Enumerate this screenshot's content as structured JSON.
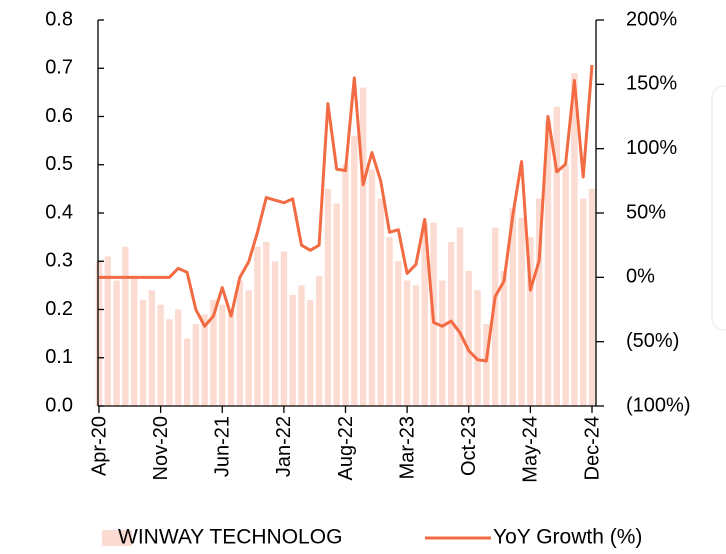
{
  "chart_data": {
    "type": "bar_line",
    "categories": [
      "Apr-20",
      null,
      null,
      null,
      null,
      null,
      null,
      "Nov-20",
      null,
      null,
      null,
      null,
      null,
      null,
      "Jun-21",
      null,
      null,
      null,
      null,
      null,
      null,
      "Jan-22",
      null,
      null,
      null,
      null,
      null,
      null,
      "Aug-22",
      null,
      null,
      null,
      null,
      null,
      null,
      "Mar-23",
      null,
      null,
      null,
      null,
      null,
      null,
      "Oct-23",
      null,
      null,
      null,
      null,
      null,
      null,
      "May-24",
      null,
      null,
      null,
      null,
      null,
      null,
      "Dec-24"
    ],
    "series": [
      {
        "name": "WINWAY TECHNOLOG",
        "type": "bar",
        "color": "#fcdcd2",
        "axis": "y",
        "values": [
          0.3,
          0.31,
          0.26,
          0.33,
          0.27,
          0.22,
          0.24,
          0.21,
          0.18,
          0.2,
          0.14,
          0.17,
          0.19,
          0.22,
          0.21,
          0.2,
          0.26,
          0.24,
          0.33,
          0.34,
          0.3,
          0.32,
          0.23,
          0.25,
          0.22,
          0.27,
          0.45,
          0.42,
          0.5,
          0.56,
          0.66,
          0.49,
          0.43,
          0.35,
          0.3,
          0.26,
          0.25,
          0.38,
          0.38,
          0.26,
          0.34,
          0.37,
          0.28,
          0.24,
          0.17,
          0.37,
          0.28,
          0.41,
          0.39,
          0.35,
          0.43,
          0.59,
          0.62,
          0.5,
          0.69,
          0.43,
          0.45
        ]
      },
      {
        "name": "YoY Growth (%)",
        "type": "line",
        "color": "#f26b43",
        "axis": "y2",
        "values": [
          0,
          0,
          0,
          0,
          0,
          0,
          0,
          0,
          0,
          7,
          4,
          -25,
          -38,
          -30,
          -8,
          -30,
          0,
          12,
          35,
          62,
          60,
          58,
          61,
          25,
          21,
          25,
          135,
          84,
          83,
          155,
          72,
          97,
          75,
          35,
          37,
          3,
          10,
          45,
          -35,
          -38,
          -34,
          -43,
          -57,
          -64,
          -65,
          -15,
          -3,
          48,
          90,
          -10,
          13,
          125,
          82,
          88,
          153,
          78,
          165
        ]
      }
    ],
    "ylim": [
      0,
      0.8
    ],
    "yticks": [
      {
        "value": 0,
        "label": "0.0"
      },
      0.1,
      0.2,
      0.3,
      0.4,
      0.5,
      0.6,
      0.7,
      0.8
    ],
    "y2lim": [
      -100,
      200
    ],
    "y2ticks": [
      {
        "value": -100,
        "label": "(100%)"
      },
      {
        "value": -50,
        "label": "(50%)"
      },
      {
        "value": 0,
        "label": "0%"
      },
      {
        "value": 50,
        "label": "50%"
      },
      {
        "value": 100,
        "label": "100%"
      },
      {
        "value": 150,
        "label": "150%"
      },
      {
        "value": 200,
        "label": "200%"
      }
    ],
    "legend": "bottom"
  }
}
